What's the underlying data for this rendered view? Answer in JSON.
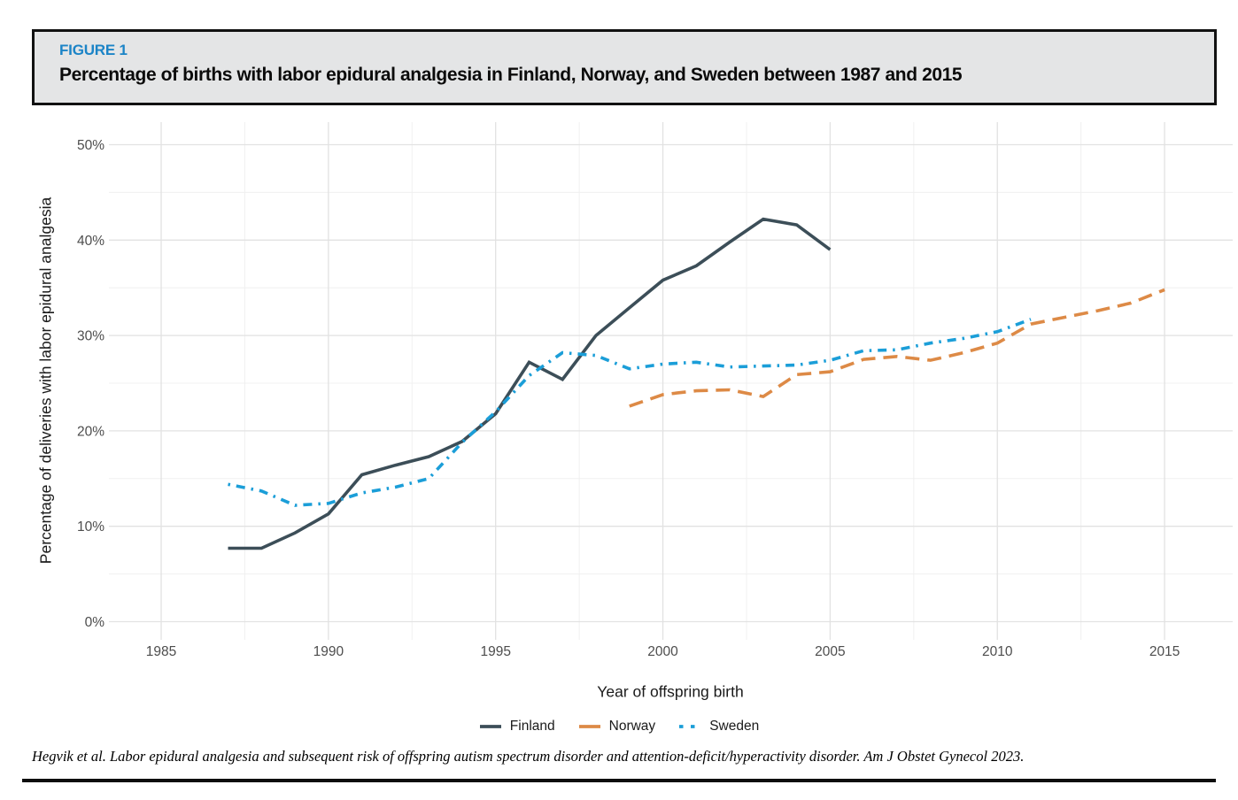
{
  "header": {
    "figure_label": "FIGURE 1",
    "title": "Percentage of births with labor epidural analgesia in Finland, Norway, and Sweden between 1987 and 2015",
    "label_color": "#1b84c7",
    "box_bg": "#e4e5e6",
    "box_border": "#111111"
  },
  "chart_data": {
    "type": "line",
    "xlabel": "Year of offspring birth",
    "ylabel": "Percentage of deliveries with labor epidural analgesia",
    "xlim": [
      1983.4,
      2017.2
    ],
    "ylim": [
      -2,
      52
    ],
    "x_ticks": {
      "major": [
        1985,
        1990,
        1995,
        2000,
        2005,
        2010,
        2015
      ],
      "minor": [
        1987.5,
        1992.5,
        1997.5,
        2002.5,
        2007.5,
        2012.5
      ]
    },
    "y_ticks": {
      "major": [
        0,
        10,
        20,
        30,
        40,
        50
      ],
      "minor": [
        5,
        15,
        25,
        35,
        45
      ]
    },
    "y_tick_suffix": "%",
    "grid": true,
    "legend_position": "bottom",
    "tick_color": "#4d4d4d",
    "grid_major_color": "#e2e2e2",
    "grid_minor_color": "#f0f0f0",
    "series": [
      {
        "name": "Finland",
        "color": "#3c4e58",
        "style": "solid",
        "points": [
          [
            1987,
            7.7
          ],
          [
            1988,
            7.7
          ],
          [
            1989,
            9.3
          ],
          [
            1990,
            11.3
          ],
          [
            1991,
            15.4
          ],
          [
            1992,
            16.4
          ],
          [
            1993,
            17.3
          ],
          [
            1994,
            18.9
          ],
          [
            1995,
            21.8
          ],
          [
            1996,
            27.2
          ],
          [
            1997,
            25.4
          ],
          [
            1998,
            30.0
          ],
          [
            1999,
            32.9
          ],
          [
            2000,
            35.8
          ],
          [
            2001,
            37.3
          ],
          [
            2002,
            39.8
          ],
          [
            2003,
            42.2
          ],
          [
            2004,
            41.6
          ],
          [
            2005,
            39.0
          ]
        ]
      },
      {
        "name": "Norway",
        "color": "#dd8a46",
        "style": "dashed",
        "points": [
          [
            1999,
            22.6
          ],
          [
            2000,
            23.8
          ],
          [
            2001,
            24.2
          ],
          [
            2002,
            24.3
          ],
          [
            2003,
            23.6
          ],
          [
            2004,
            25.9
          ],
          [
            2005,
            26.2
          ],
          [
            2006,
            27.5
          ],
          [
            2007,
            27.8
          ],
          [
            2008,
            27.4
          ],
          [
            2009,
            28.2
          ],
          [
            2010,
            29.2
          ],
          [
            2011,
            31.2
          ],
          [
            2012,
            31.9
          ],
          [
            2013,
            32.6
          ],
          [
            2014,
            33.4
          ],
          [
            2015,
            34.8
          ]
        ]
      },
      {
        "name": "Sweden",
        "color": "#1b9ed8",
        "style": "dashdot",
        "points": [
          [
            1987,
            14.4
          ],
          [
            1988,
            13.7
          ],
          [
            1989,
            12.2
          ],
          [
            1990,
            12.4
          ],
          [
            1991,
            13.5
          ],
          [
            1992,
            14.1
          ],
          [
            1993,
            15.0
          ],
          [
            1994,
            18.8
          ],
          [
            1995,
            22.0
          ],
          [
            1996,
            25.8
          ],
          [
            1997,
            28.2
          ],
          [
            1998,
            27.9
          ],
          [
            1999,
            26.5
          ],
          [
            2000,
            27.0
          ],
          [
            2001,
            27.2
          ],
          [
            2002,
            26.7
          ],
          [
            2003,
            26.8
          ],
          [
            2004,
            26.9
          ],
          [
            2005,
            27.4
          ],
          [
            2006,
            28.4
          ],
          [
            2007,
            28.5
          ],
          [
            2008,
            29.2
          ],
          [
            2009,
            29.7
          ],
          [
            2010,
            30.4
          ],
          [
            2011,
            31.7
          ]
        ]
      }
    ]
  },
  "footer": {
    "citation": "Hegvik et al. Labor epidural analgesia and subsequent risk of offspring autism spectrum disorder and attention-deficit/hyperactivity disorder. Am J Obstet Gynecol 2023."
  }
}
